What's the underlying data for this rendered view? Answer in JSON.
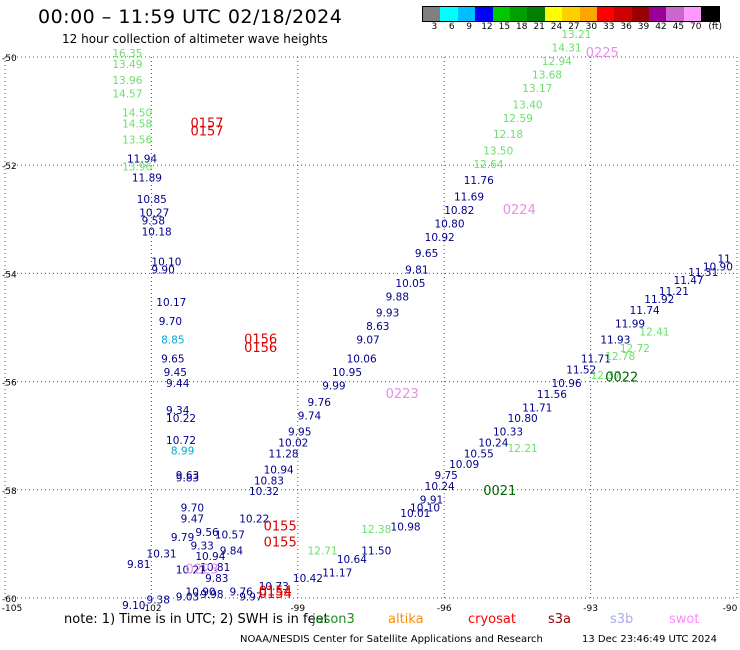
{
  "title": "00:00 – 11:59 UTC 02/18/2024",
  "subtitle": "12 hour collection of altimeter wave heights",
  "scale": {
    "colors": [
      "#808080",
      "#00ffff",
      "#00bfff",
      "#0000ff",
      "#00c800",
      "#00a000",
      "#008000",
      "#ffff00",
      "#ffd000",
      "#ffa500",
      "#ff0000",
      "#cc0000",
      "#990000",
      "#990099",
      "#cc66cc",
      "#ff99ff",
      "#000000"
    ],
    "labels": [
      "3",
      "6",
      "9",
      "12",
      "15",
      "18",
      "21",
      "24",
      "27",
      "30",
      "33",
      "36",
      "39",
      "42",
      "45",
      "70",
      "(ft)"
    ]
  },
  "axes": {
    "lat_labels": [
      "-50",
      "-52",
      "-54",
      "-56",
      "-58",
      "-60"
    ],
    "lon_labels": [
      "-105",
      "-102",
      "-99",
      "-96",
      "-93",
      "-90"
    ],
    "lat_range": [
      -60,
      -50
    ],
    "lon_range": [
      -105,
      -90
    ]
  },
  "tracks": [
    {
      "color": "#00008b",
      "points": [
        {
          "lon": -98.5,
          "lat": -59.6,
          "text": "11.17"
        },
        {
          "lon": -99.1,
          "lat": -59.7,
          "text": "10.42"
        },
        {
          "lon": -99.8,
          "lat": -59.85,
          "text": "10.73"
        },
        {
          "lon": -100.4,
          "lat": -59.95,
          "text": "9.76"
        },
        {
          "lon": -101.0,
          "lat": -60.0,
          "text": "9.98"
        },
        {
          "lon": -101.5,
          "lat": -60.05,
          "text": "9.03"
        },
        {
          "lon": -102.1,
          "lat": -60.1,
          "text": "9.38"
        },
        {
          "lon": -102.6,
          "lat": -60.2,
          "text": "9.10"
        }
      ]
    },
    {
      "color": "#00008b",
      "points": [
        {
          "lon": -102.5,
          "lat": -59.45,
          "text": "9.81"
        },
        {
          "lon": -102.1,
          "lat": -59.25,
          "text": "10.31"
        },
        {
          "lon": -101.6,
          "lat": -58.95,
          "text": "9.79"
        },
        {
          "lon": -101.1,
          "lat": -58.85,
          "text": "9.56"
        },
        {
          "lon": -100.7,
          "lat": -58.9,
          "text": "10.57"
        },
        {
          "lon": -100.6,
          "lat": -59.2,
          "text": "9.84"
        },
        {
          "lon": -100.2,
          "lat": -58.6,
          "text": "10.22"
        },
        {
          "lon": -100.0,
          "lat": -58.1,
          "text": "10.32"
        },
        {
          "lon": -99.9,
          "lat": -57.9,
          "text": "10.83"
        },
        {
          "lon": -99.7,
          "lat": -57.7,
          "text": "10.94"
        },
        {
          "lon": -99.6,
          "lat": -57.4,
          "text": "11.28"
        },
        {
          "lon": -99.4,
          "lat": -57.2,
          "text": "10.02"
        },
        {
          "lon": -99.2,
          "lat": -57.0,
          "text": "9.95"
        },
        {
          "lon": -99.0,
          "lat": -56.7,
          "text": "9.74"
        },
        {
          "lon": -98.8,
          "lat": -56.45,
          "text": "9.76"
        },
        {
          "lon": -98.5,
          "lat": -56.15,
          "text": "9.99"
        },
        {
          "lon": -98.3,
          "lat": -55.9,
          "text": "10.95"
        },
        {
          "lon": -98.0,
          "lat": -55.65,
          "text": "10.06"
        },
        {
          "lon": -97.8,
          "lat": -55.3,
          "text": "9.07"
        },
        {
          "lon": -97.6,
          "lat": -55.05,
          "text": "8.63"
        },
        {
          "lon": -97.4,
          "lat": -54.8,
          "text": "9.93"
        },
        {
          "lon": -97.2,
          "lat": -54.5,
          "text": "9.88"
        },
        {
          "lon": -97.0,
          "lat": -54.25,
          "text": "10.05"
        },
        {
          "lon": -96.8,
          "lat": -54.0,
          "text": "9.81"
        },
        {
          "lon": -96.6,
          "lat": -53.7,
          "text": "9.65"
        },
        {
          "lon": -96.4,
          "lat": -53.4,
          "text": "10.92"
        },
        {
          "lon": -96.2,
          "lat": -53.15,
          "text": "10.80"
        },
        {
          "lon": -96.0,
          "lat": -52.9,
          "text": "10.82"
        },
        {
          "lon": -95.8,
          "lat": -52.65,
          "text": "11.69"
        },
        {
          "lon": -95.6,
          "lat": -52.35,
          "text": "11.76"
        }
      ]
    },
    {
      "color": "#6adf6a",
      "points": [
        {
          "lon": -95.4,
          "lat": -52.05,
          "text": "12.64"
        },
        {
          "lon": -95.2,
          "lat": -51.8,
          "text": "13.50"
        },
        {
          "lon": -95.0,
          "lat": -51.5,
          "text": "12.18"
        },
        {
          "lon": -94.8,
          "lat": -51.2,
          "text": "12.59"
        },
        {
          "lon": -94.6,
          "lat": -50.95,
          "text": "13.40"
        },
        {
          "lon": -94.4,
          "lat": -50.65,
          "text": "13.17"
        },
        {
          "lon": -94.2,
          "lat": -50.4,
          "text": "13.68"
        },
        {
          "lon": -94.0,
          "lat": -50.15,
          "text": "12.94"
        },
        {
          "lon": -93.8,
          "lat": -49.9,
          "text": "14.31"
        },
        {
          "lon": -93.6,
          "lat": -49.65,
          "text": "13.21"
        }
      ]
    },
    {
      "color": "#6adf6a",
      "points": [
        {
          "lon": -102.8,
          "lat": -50.0,
          "text": "16.35"
        },
        {
          "lon": -102.8,
          "lat": -50.2,
          "text": "13.49"
        },
        {
          "lon": -102.8,
          "lat": -50.5,
          "text": "13.96"
        },
        {
          "lon": -102.8,
          "lat": -50.75,
          "text": "14.57"
        },
        {
          "lon": -102.6,
          "lat": -51.1,
          "text": "14.50"
        },
        {
          "lon": -102.6,
          "lat": -51.3,
          "text": "14.58"
        },
        {
          "lon": -102.6,
          "lat": -51.6,
          "text": "13.56"
        },
        {
          "lon": -102.6,
          "lat": -52.1,
          "text": "13.96"
        }
      ]
    },
    {
      "color": "#00008b",
      "points": [
        {
          "lon": -102.5,
          "lat": -51.95,
          "text": "11.94"
        },
        {
          "lon": -102.4,
          "lat": -52.3,
          "text": "11.89"
        },
        {
          "lon": -102.3,
          "lat": -52.7,
          "text": "10.85"
        },
        {
          "lon": -102.25,
          "lat": -52.95,
          "text": "10.27"
        },
        {
          "lon": -102.2,
          "lat": -53.1,
          "text": "9.58"
        },
        {
          "lon": -102.2,
          "lat": -53.3,
          "text": "10.18"
        },
        {
          "lon": -102.0,
          "lat": -53.85,
          "text": "10.10"
        },
        {
          "lon": -102.0,
          "lat": -54.0,
          "text": "9.90"
        },
        {
          "lon": -101.9,
          "lat": -54.6,
          "text": "10.17"
        },
        {
          "lon": -101.85,
          "lat": -54.95,
          "text": "9.70"
        },
        {
          "lon": -101.8,
          "lat": -55.65,
          "text": "9.65"
        },
        {
          "lon": -101.75,
          "lat": -55.9,
          "text": "9.45"
        },
        {
          "lon": -101.7,
          "lat": -56.1,
          "text": "9.44"
        },
        {
          "lon": -101.7,
          "lat": -56.6,
          "text": "9.34"
        },
        {
          "lon": -101.7,
          "lat": -56.75,
          "text": "10.22"
        },
        {
          "lon": -101.7,
          "lat": -57.15,
          "text": "10.72"
        },
        {
          "lon": -101.5,
          "lat": -57.8,
          "text": "9.63"
        },
        {
          "lon": -101.5,
          "lat": -57.85,
          "text": "9.83"
        },
        {
          "lon": -101.4,
          "lat": -58.4,
          "text": "9.70"
        },
        {
          "lon": -101.4,
          "lat": -58.6,
          "text": "9.47"
        },
        {
          "lon": -101.2,
          "lat": -59.1,
          "text": "9.33"
        },
        {
          "lon": -101.1,
          "lat": -59.3,
          "text": "10.94"
        },
        {
          "lon": -101.0,
          "lat": -59.5,
          "text": "10.81"
        },
        {
          "lon": -100.9,
          "lat": -59.7,
          "text": "9.83"
        }
      ]
    },
    {
      "color": "#00aad4",
      "points": [
        {
          "lon": -101.8,
          "lat": -55.3,
          "text": "8.85"
        },
        {
          "lon": -101.6,
          "lat": -57.35,
          "text": "8.99"
        }
      ]
    },
    {
      "color": "#00008b",
      "points": [
        {
          "lon": -98.2,
          "lat": -59.35,
          "text": "10.64"
        },
        {
          "lon": -97.7,
          "lat": -59.2,
          "text": "11.50"
        },
        {
          "lon": -97.1,
          "lat": -58.75,
          "text": "10.98"
        },
        {
          "lon": -96.9,
          "lat": -58.5,
          "text": "10.01"
        },
        {
          "lon": -96.7,
          "lat": -58.4,
          "text": "10.10"
        },
        {
          "lon": -96.5,
          "lat": -58.25,
          "text": "9.91"
        },
        {
          "lon": -96.4,
          "lat": -58.0,
          "text": "10.24"
        },
        {
          "lon": -96.2,
          "lat": -57.8,
          "text": "9.75"
        },
        {
          "lon": -95.9,
          "lat": -57.6,
          "text": "10.09"
        },
        {
          "lon": -95.6,
          "lat": -57.4,
          "text": "10.55"
        },
        {
          "lon": -95.3,
          "lat": -57.2,
          "text": "10.24"
        },
        {
          "lon": -95.0,
          "lat": -57.0,
          "text": "10.33"
        },
        {
          "lon": -94.7,
          "lat": -56.75,
          "text": "10.80"
        },
        {
          "lon": -94.4,
          "lat": -56.55,
          "text": "11.71"
        },
        {
          "lon": -94.1,
          "lat": -56.3,
          "text": "11.56"
        },
        {
          "lon": -93.8,
          "lat": -56.1,
          "text": "10.96"
        },
        {
          "lon": -93.5,
          "lat": -55.85,
          "text": "11.52"
        },
        {
          "lon": -93.2,
          "lat": -55.65,
          "text": "11.71"
        },
        {
          "lon": -92.8,
          "lat": -55.3,
          "text": "11.93"
        },
        {
          "lon": -92.5,
          "lat": -55.0,
          "text": "11.99"
        },
        {
          "lon": -92.2,
          "lat": -54.75,
          "text": "11.74"
        },
        {
          "lon": -91.9,
          "lat": -54.55,
          "text": "11.92"
        },
        {
          "lon": -91.6,
          "lat": -54.4,
          "text": "11.21"
        },
        {
          "lon": -91.3,
          "lat": -54.2,
          "text": "11.47"
        },
        {
          "lon": -91.0,
          "lat": -54.05,
          "text": "11.31"
        },
        {
          "lon": -90.7,
          "lat": -53.95,
          "text": "10.90"
        },
        {
          "lon": -90.4,
          "lat": -53.8,
          "text": "11"
        }
      ]
    },
    {
      "color": "#6adf6a",
      "points": [
        {
          "lon": -98.8,
          "lat": -59.2,
          "text": "12.71"
        },
        {
          "lon": -97.7,
          "lat": -58.8,
          "text": "12.38"
        },
        {
          "lon": -94.7,
          "lat": -57.3,
          "text": "12.21"
        },
        {
          "lon": -93.0,
          "lat": -55.95,
          "text": "12.37"
        },
        {
          "lon": -92.7,
          "lat": -55.6,
          "text": "12.78"
        },
        {
          "lon": -92.4,
          "lat": -55.45,
          "text": "12.72"
        },
        {
          "lon": -92.0,
          "lat": -55.15,
          "text": "12.41"
        }
      ]
    },
    {
      "color": "#00008b",
      "points": [
        {
          "lon": -101.5,
          "lat": -59.55,
          "text": "10.21"
        },
        {
          "lon": -101.3,
          "lat": -59.95,
          "text": "10.90"
        },
        {
          "lon": -100.2,
          "lat": -60.05,
          "text": "9.97"
        }
      ]
    }
  ],
  "orbit_labels": [
    {
      "lon": -93.1,
      "lat": -50.0,
      "text": "0225",
      "color": "#e88de8"
    },
    {
      "lon": -94.8,
      "lat": -52.9,
      "text": "0224",
      "color": "#e88de8"
    },
    {
      "lon": -97.2,
      "lat": -56.3,
      "text": "0223",
      "color": "#e88de8"
    },
    {
      "lon": -101.3,
      "lat": -59.55,
      "text": "0223",
      "color": "#e88de8"
    },
    {
      "lon": -101.2,
      "lat": -51.3,
      "text": "0157",
      "color": "#dd0000"
    },
    {
      "lon": -101.2,
      "lat": -51.45,
      "text": "0157",
      "color": "#dd0000"
    },
    {
      "lon": -100.1,
      "lat": -55.3,
      "text": "0156",
      "color": "#dd0000"
    },
    {
      "lon": -100.1,
      "lat": -55.45,
      "text": "0156",
      "color": "#dd0000"
    },
    {
      "lon": -99.7,
      "lat": -58.75,
      "text": "0155",
      "color": "#dd0000"
    },
    {
      "lon": -99.7,
      "lat": -59.05,
      "text": "0155",
      "color": "#dd0000"
    },
    {
      "lon": -99.8,
      "lat": -59.95,
      "text": "0154",
      "color": "#dd0000"
    },
    {
      "lon": -99.8,
      "lat": -60.0,
      "text": "0154",
      "color": "#dd0000"
    },
    {
      "lon": -92.7,
      "lat": -56.0,
      "text": "0022",
      "color": "#006400"
    },
    {
      "lon": -95.2,
      "lat": -58.1,
      "text": "0021",
      "color": "#006400"
    }
  ],
  "note": "note: 1) Time is in UTC; 2) SWH is in feet",
  "satellites": [
    {
      "name": "jason3",
      "color": "#228b22"
    },
    {
      "name": "altika",
      "color": "#ff8c00"
    },
    {
      "name": "cryosat",
      "color": "#ff0000"
    },
    {
      "name": "s3a",
      "color": "#990000"
    },
    {
      "name": "s3b",
      "color": "#a9a9f0"
    },
    {
      "name": "swot",
      "color": "#ff88ff"
    }
  ],
  "credit": "NOAA/NESDIS Center for Satellite Applications and Research",
  "timestamp": "13 Dec 23:46:49 UTC 2024"
}
